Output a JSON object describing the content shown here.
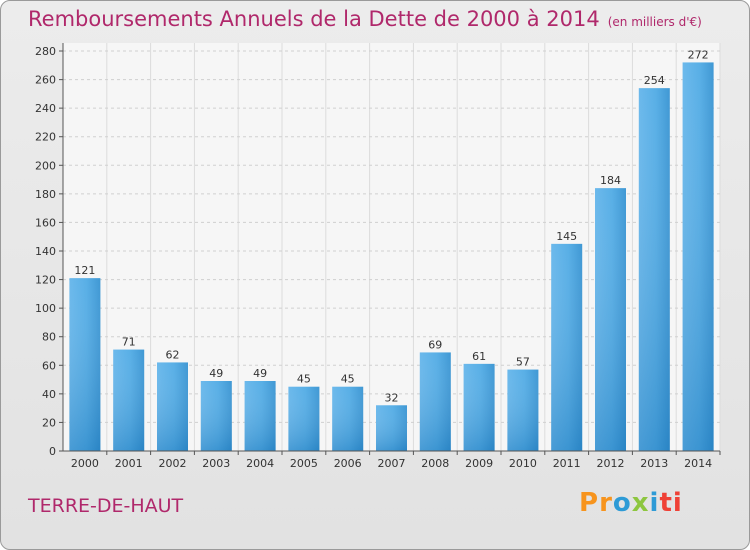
{
  "chart_data": {
    "type": "bar",
    "title": "Remboursements Annuels de la Dette de 2000 à 2014",
    "subtitle": "(en milliers d'€)",
    "categories": [
      "2000",
      "2001",
      "2002",
      "2003",
      "2004",
      "2005",
      "2006",
      "2007",
      "2008",
      "2009",
      "2010",
      "2011",
      "2012",
      "2013",
      "2014"
    ],
    "values": [
      121,
      71,
      62,
      49,
      49,
      45,
      45,
      32,
      69,
      61,
      57,
      145,
      184,
      254,
      272
    ],
    "xlabel": "",
    "ylabel": "",
    "ylim": [
      0,
      280
    ],
    "yticks": [
      0,
      20,
      40,
      60,
      80,
      100,
      120,
      140,
      160,
      180,
      200,
      220,
      240,
      260,
      280
    ],
    "grid": true,
    "bar_color": "#3a9ad9"
  },
  "footer": {
    "place": "TERRE-DE-HAUT",
    "logo_letters": [
      "P",
      "r",
      "o",
      "x",
      "i",
      "ti"
    ]
  }
}
